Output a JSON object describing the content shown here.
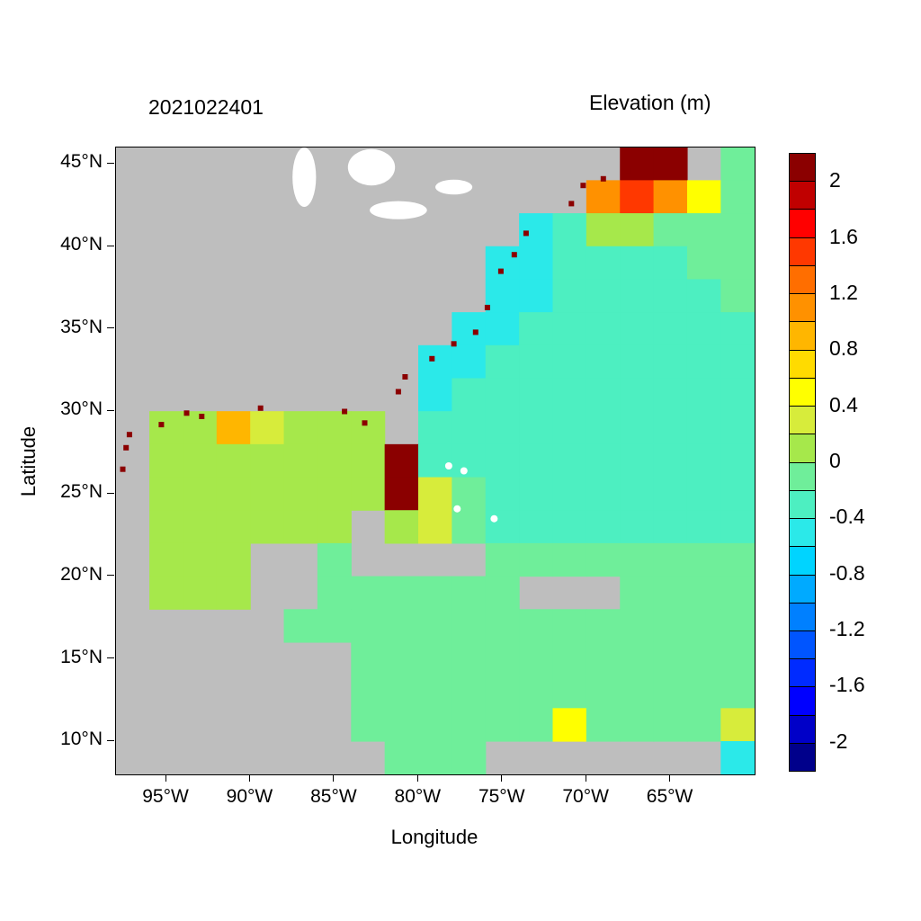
{
  "chart_data": {
    "type": "heatmap",
    "title_left": "2021022401",
    "title_right": "Elevation (m)",
    "xlabel": "Longitude",
    "ylabel": "Latitude",
    "lon_range": [
      -98,
      -60
    ],
    "lat_range": [
      8,
      46
    ],
    "cell_size_deg": 2,
    "land_color": "#BEBEBE",
    "lake_color": "#FFFFFF",
    "x_ticks": [
      {
        "lon": -95,
        "label": "95°W"
      },
      {
        "lon": -90,
        "label": "90°W"
      },
      {
        "lon": -85,
        "label": "85°W"
      },
      {
        "lon": -80,
        "label": "80°W"
      },
      {
        "lon": -75,
        "label": "75°W"
      },
      {
        "lon": -70,
        "label": "70°W"
      },
      {
        "lon": -65,
        "label": "65°W"
      }
    ],
    "y_ticks": [
      {
        "lat": 45,
        "label": "45°N"
      },
      {
        "lat": 40,
        "label": "40°N"
      },
      {
        "lat": 35,
        "label": "35°N"
      },
      {
        "lat": 30,
        "label": "30°N"
      },
      {
        "lat": 25,
        "label": "25°N"
      },
      {
        "lat": 20,
        "label": "20°N"
      },
      {
        "lat": 15,
        "label": "15°N"
      },
      {
        "lat": 10,
        "label": "10°N"
      }
    ],
    "grid_rows_top_to_bottom": [
      [
        null,
        null,
        null,
        null,
        null,
        null,
        null,
        null,
        null,
        null,
        null,
        null,
        null,
        null,
        null,
        2.1,
        2.1,
        null,
        -0.1
      ],
      [
        null,
        null,
        null,
        null,
        null,
        null,
        null,
        null,
        null,
        null,
        null,
        null,
        null,
        null,
        1.1,
        1.5,
        1.1,
        0.5,
        -0.1
      ],
      [
        null,
        null,
        null,
        null,
        null,
        null,
        null,
        null,
        null,
        null,
        null,
        null,
        -0.5,
        -0.3,
        0.1,
        0.1,
        -0.1,
        -0.1,
        -0.1
      ],
      [
        null,
        null,
        null,
        null,
        null,
        null,
        null,
        null,
        null,
        null,
        null,
        -0.5,
        -0.5,
        -0.3,
        -0.3,
        -0.3,
        -0.3,
        -0.1,
        -0.1
      ],
      [
        null,
        null,
        null,
        null,
        null,
        null,
        null,
        null,
        null,
        null,
        null,
        -0.5,
        -0.5,
        -0.3,
        -0.3,
        -0.3,
        -0.3,
        -0.3,
        -0.1
      ],
      [
        null,
        null,
        null,
        null,
        null,
        null,
        null,
        null,
        null,
        null,
        -0.5,
        -0.5,
        -0.3,
        -0.3,
        -0.3,
        -0.3,
        -0.3,
        -0.3,
        -0.3
      ],
      [
        null,
        null,
        null,
        null,
        null,
        null,
        null,
        null,
        null,
        -0.5,
        -0.5,
        -0.3,
        -0.3,
        -0.3,
        -0.3,
        -0.3,
        -0.3,
        -0.3,
        -0.3
      ],
      [
        null,
        null,
        null,
        null,
        null,
        null,
        null,
        null,
        null,
        -0.5,
        -0.3,
        -0.3,
        -0.3,
        -0.3,
        -0.3,
        -0.3,
        -0.3,
        -0.3,
        -0.3
      ],
      [
        null,
        0.1,
        0.1,
        0.9,
        0.3,
        0.1,
        0.1,
        0.1,
        null,
        -0.3,
        -0.3,
        -0.3,
        -0.3,
        -0.3,
        -0.3,
        -0.3,
        -0.3,
        -0.3,
        -0.3
      ],
      [
        null,
        0.1,
        0.1,
        0.1,
        0.1,
        0.1,
        0.1,
        0.1,
        2.1,
        -0.3,
        -0.3,
        -0.3,
        -0.3,
        -0.3,
        -0.3,
        -0.3,
        -0.3,
        -0.3,
        -0.3
      ],
      [
        null,
        0.1,
        0.1,
        0.1,
        0.1,
        0.1,
        0.1,
        0.1,
        2.1,
        0.3,
        -0.1,
        -0.3,
        -0.3,
        -0.3,
        -0.3,
        -0.3,
        -0.3,
        -0.3,
        -0.3
      ],
      [
        null,
        0.1,
        0.1,
        0.1,
        0.1,
        0.1,
        0.1,
        null,
        0.1,
        0.3,
        -0.1,
        -0.3,
        -0.3,
        -0.3,
        -0.3,
        -0.3,
        -0.3,
        -0.3,
        -0.3
      ],
      [
        null,
        0.1,
        0.1,
        0.1,
        null,
        null,
        -0.1,
        null,
        null,
        null,
        null,
        -0.1,
        -0.1,
        -0.1,
        -0.1,
        -0.1,
        -0.1,
        -0.1,
        -0.1
      ],
      [
        null,
        0.1,
        0.1,
        0.1,
        null,
        null,
        -0.1,
        -0.1,
        -0.1,
        -0.1,
        -0.1,
        -0.1,
        null,
        null,
        null,
        -0.1,
        -0.1,
        -0.1,
        -0.1
      ],
      [
        null,
        null,
        null,
        null,
        null,
        -0.1,
        -0.1,
        -0.1,
        -0.1,
        -0.1,
        -0.1,
        -0.1,
        -0.1,
        -0.1,
        -0.1,
        -0.1,
        -0.1,
        -0.1,
        -0.1
      ],
      [
        null,
        null,
        null,
        null,
        null,
        null,
        null,
        -0.1,
        -0.1,
        -0.1,
        -0.1,
        -0.1,
        -0.1,
        -0.1,
        -0.1,
        -0.1,
        -0.1,
        -0.1,
        -0.1
      ],
      [
        null,
        null,
        null,
        null,
        null,
        null,
        null,
        -0.1,
        -0.1,
        -0.1,
        -0.1,
        -0.1,
        -0.1,
        -0.1,
        -0.1,
        -0.1,
        -0.1,
        -0.1,
        -0.1
      ],
      [
        null,
        null,
        null,
        null,
        null,
        null,
        null,
        -0.1,
        -0.1,
        -0.1,
        -0.1,
        -0.1,
        -0.1,
        0.5,
        -0.1,
        -0.1,
        -0.1,
        -0.1,
        0.3
      ],
      [
        null,
        null,
        null,
        null,
        null,
        null,
        null,
        null,
        -0.1,
        -0.1,
        -0.1,
        null,
        null,
        null,
        null,
        null,
        null,
        null,
        -0.5
      ]
    ],
    "coastal_highwater_points": [
      {
        "lon": -97.6,
        "lat": 26.5,
        "value": 2.1
      },
      {
        "lon": -97.4,
        "lat": 27.8,
        "value": 2.1
      },
      {
        "lon": -97.2,
        "lat": 28.6,
        "value": 2.1
      },
      {
        "lon": -95.3,
        "lat": 29.2,
        "value": 2.1
      },
      {
        "lon": -93.8,
        "lat": 29.9,
        "value": 2.1
      },
      {
        "lon": -92.9,
        "lat": 29.7,
        "value": 2.1
      },
      {
        "lon": -89.4,
        "lat": 30.2,
        "value": 2.1
      },
      {
        "lon": -84.4,
        "lat": 30.0,
        "value": 2.1
      },
      {
        "lon": -83.2,
        "lat": 29.3,
        "value": 2.1
      },
      {
        "lon": -81.2,
        "lat": 31.2,
        "value": 2.1
      },
      {
        "lon": -80.8,
        "lat": 32.1,
        "value": 2.1
      },
      {
        "lon": -79.2,
        "lat": 33.2,
        "value": 2.1
      },
      {
        "lon": -77.9,
        "lat": 34.1,
        "value": 2.1
      },
      {
        "lon": -76.6,
        "lat": 34.8,
        "value": 2.1
      },
      {
        "lon": -75.9,
        "lat": 36.3,
        "value": 2.1
      },
      {
        "lon": -75.1,
        "lat": 38.5,
        "value": 2.1
      },
      {
        "lon": -74.3,
        "lat": 39.5,
        "value": 2.1
      },
      {
        "lon": -73.6,
        "lat": 40.8,
        "value": 2.1
      },
      {
        "lon": -70.9,
        "lat": 42.6,
        "value": 2.1
      },
      {
        "lon": -70.2,
        "lat": 43.7,
        "value": 2.1
      },
      {
        "lon": -69.0,
        "lat": 44.1,
        "value": 2.1
      },
      {
        "lon": -67.5,
        "lat": 44.6,
        "value": 2.1
      }
    ],
    "lakes": [
      {
        "lon": -86.8,
        "lat": 44.2,
        "rx_deg": 0.7,
        "ry_deg": 1.8
      },
      {
        "lon": -82.8,
        "lat": 44.8,
        "rx_deg": 1.4,
        "ry_deg": 1.1
      },
      {
        "lon": -81.2,
        "lat": 42.2,
        "rx_deg": 1.7,
        "ry_deg": 0.55
      },
      {
        "lon": -77.9,
        "lat": 43.6,
        "rx_deg": 1.1,
        "ry_deg": 0.45
      }
    ],
    "islands": [
      {
        "lon": -78.2,
        "lat": 26.7
      },
      {
        "lon": -77.3,
        "lat": 26.4
      },
      {
        "lon": -77.7,
        "lat": 24.1
      },
      {
        "lon": -75.5,
        "lat": 23.5
      }
    ],
    "colorbar": {
      "min": -2.2,
      "max": 2.2,
      "step": 0.2,
      "colors": [
        "#00008B",
        "#0000C8",
        "#0000FF",
        "#002BFF",
        "#0055FF",
        "#0080FF",
        "#00AAFF",
        "#00D4FF",
        "#2BE9E9",
        "#4DEFC1",
        "#6FEE9A",
        "#A6E84B",
        "#D7EC3B",
        "#FFFF00",
        "#FFDB00",
        "#FFB600",
        "#FF9100",
        "#FF6E00",
        "#FF3800",
        "#FF0000",
        "#C00000",
        "#8B0000"
      ],
      "ticks": [
        {
          "value": 2,
          "label": "2"
        },
        {
          "value": 1.6,
          "label": "1.6"
        },
        {
          "value": 1.2,
          "label": "1.2"
        },
        {
          "value": 0.8,
          "label": "0.8"
        },
        {
          "value": 0.4,
          "label": "0.4"
        },
        {
          "value": 0,
          "label": "0"
        },
        {
          "value": -0.4,
          "label": "-0.4"
        },
        {
          "value": -0.8,
          "label": "-0.8"
        },
        {
          "value": -1.2,
          "label": "-1.2"
        },
        {
          "value": -1.6,
          "label": "-1.6"
        },
        {
          "value": -2,
          "label": "-2"
        }
      ]
    }
  }
}
